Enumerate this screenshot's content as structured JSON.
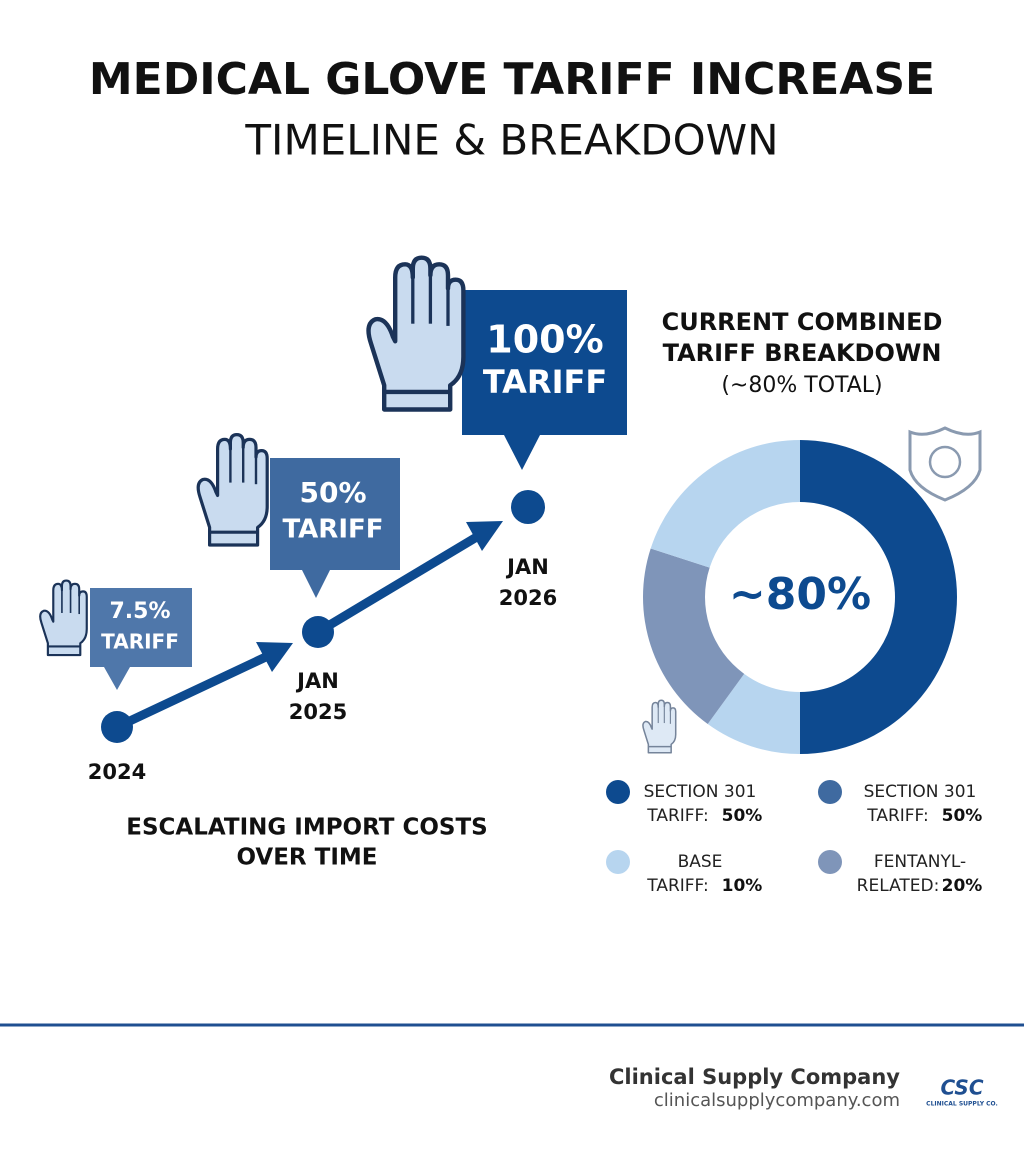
{
  "header": {
    "title": "MEDICAL GLOVE TARIFF INCREASE",
    "subtitle": "TIMELINE & BREAKDOWN"
  },
  "timeline": {
    "steps": [
      {
        "rate": "7.5%",
        "word": "TARIFF",
        "date": [
          "2024"
        ]
      },
      {
        "rate": "50%",
        "word": "TARIFF",
        "date": [
          "JAN",
          "2025"
        ]
      },
      {
        "rate": "100%",
        "word": "TARIFF",
        "date": [
          "JAN",
          "2026"
        ]
      }
    ],
    "caption": [
      "ESCALATING IMPORT COSTS",
      "OVER TIME"
    ]
  },
  "breakdown": {
    "title": [
      "CURRENT COMBINED",
      "TARIFF BREAKDOWN"
    ],
    "subtitle": "(~80% TOTAL)",
    "center_label": "~80%",
    "segments": [
      {
        "value": 50,
        "color": "#0d4a8f"
      },
      {
        "value": 10,
        "color": "#b7d5ef"
      },
      {
        "value": 20,
        "color": "#7f95b9"
      },
      {
        "value": 20,
        "color": "#b7d5ef"
      }
    ],
    "legend": [
      {
        "line1": "SECTION 301",
        "line2": "TARIFF:",
        "amount": "50%",
        "color": "#0d4a8f"
      },
      {
        "line1": "SECTION 301",
        "line2": "TARIFF:",
        "amount": "50%",
        "color": "#3f6aa0"
      },
      {
        "line1": "BASE",
        "line2": "TARIFF:",
        "amount": "10%",
        "color": "#b7d5ef"
      },
      {
        "line1": "FENTANYL-",
        "line2": "RELATED:",
        "amount": "20%",
        "color": "#7f95b9"
      }
    ]
  },
  "footer": {
    "company": "Clinical Supply Company",
    "url": "clinicalsupplycompany.com",
    "logo": "CSC",
    "logo_sub": "CLINICAL SUPPLY CO."
  }
}
